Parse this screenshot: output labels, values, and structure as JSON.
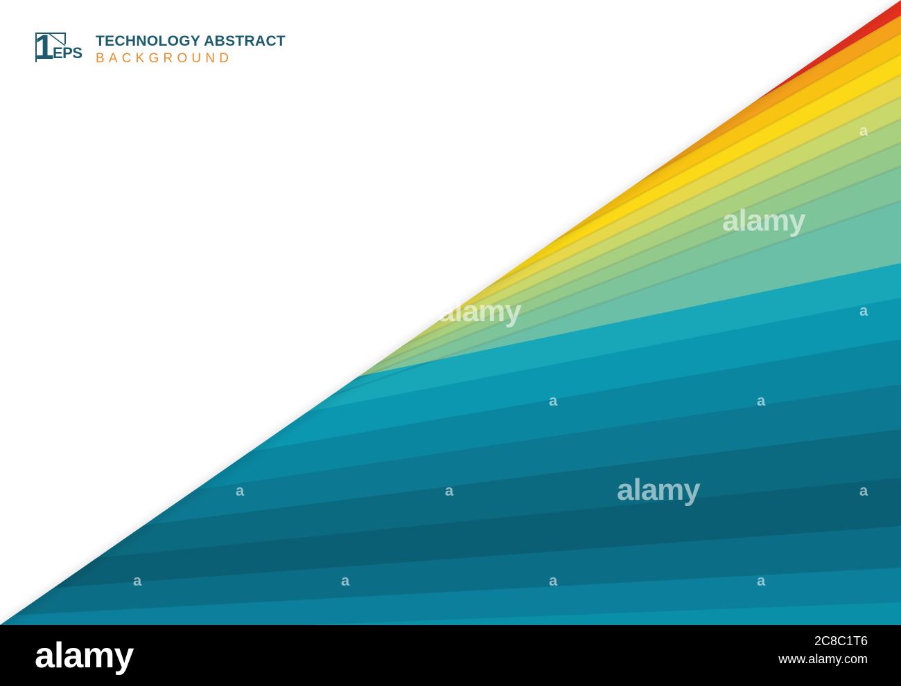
{
  "logo": {
    "number": "1",
    "format": "EPS",
    "line1": "TECHNOLOGY ABSTRACT",
    "line2": "BACKGROUND"
  },
  "watermark": {
    "text": "alamy",
    "glyph": "a"
  },
  "footer": {
    "brand": "alamy",
    "image_id": "2C8C1T6",
    "url": "www.alamy.com"
  },
  "colors": {
    "brand_teal": "#1d5a6e",
    "brand_orange": "#ec8a2c",
    "stripes_top": [
      "#e8311f",
      "#f4a21a",
      "#f9c411",
      "#fbd916",
      "#e6d84a",
      "#c9d86a",
      "#a9d07e",
      "#93c98b",
      "#7ec49a",
      "#6bbfa6"
    ],
    "stripes_bottom": [
      "#17a7b9",
      "#0c97b0",
      "#0a86a0",
      "#0d7891",
      "#0c6a80",
      "#0b5f74",
      "#0c6e86",
      "#0b7f9b",
      "#0a8fa9",
      "#0b9cb7"
    ],
    "footer_bg": "#000000"
  }
}
